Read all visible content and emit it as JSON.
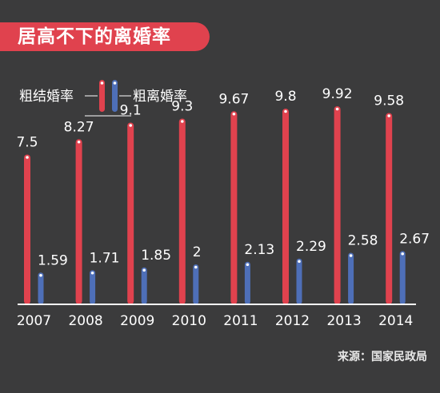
{
  "title": "居高不下的离婚率",
  "source": "来源：国家民政局",
  "colors": {
    "background": "#3b3b3c",
    "crude_marriage": "#e0424e",
    "crude_divorce": "#4e6fb8",
    "axis": "#ffffff",
    "text": "#ffffff"
  },
  "chart_data": {
    "type": "bar",
    "categories": [
      "2007",
      "2008",
      "2009",
      "2010",
      "2011",
      "2012",
      "2013",
      "2014"
    ],
    "series": [
      {
        "name": "粗结婚率",
        "values": [
          7.5,
          8.27,
          9.1,
          9.3,
          9.67,
          9.8,
          9.92,
          9.58
        ]
      },
      {
        "name": "粗离婚率",
        "values": [
          1.59,
          1.71,
          1.85,
          2,
          2.13,
          2.29,
          2.58,
          2.67
        ]
      }
    ],
    "value_labels": [
      [
        "7.5",
        "8.27",
        "9.1",
        "9.3",
        "9.67",
        "9.8",
        "9.92",
        "9.58"
      ],
      [
        "1.59",
        "1.71",
        "1.85",
        "2",
        "2.13",
        "2.29",
        "2.58",
        "2.67"
      ]
    ],
    "ylim": [
      0,
      10
    ],
    "legend_position": "top-left",
    "grid": false
  }
}
